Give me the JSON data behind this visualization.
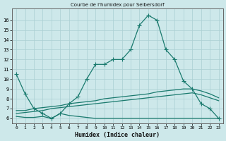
{
  "x": [
    0,
    1,
    2,
    3,
    4,
    5,
    6,
    7,
    8,
    9,
    10,
    11,
    12,
    13,
    14,
    15,
    16,
    17,
    18,
    19,
    20,
    21,
    22,
    23
  ],
  "line1": [
    10.5,
    8.5,
    7.0,
    6.5,
    6.0,
    6.5,
    7.5,
    8.2,
    10.0,
    11.5,
    11.5,
    12.0,
    12.0,
    13.0,
    15.5,
    16.5,
    16.0,
    13.0,
    12.0,
    9.8,
    9.0,
    7.5,
    7.0,
    6.0
  ],
  "line2": [
    6.8,
    6.8,
    7.0,
    7.1,
    7.2,
    7.3,
    7.5,
    7.6,
    7.7,
    7.8,
    8.0,
    8.1,
    8.2,
    8.3,
    8.4,
    8.5,
    8.7,
    8.8,
    8.9,
    9.0,
    9.0,
    8.8,
    8.5,
    8.1
  ],
  "line3": [
    6.5,
    6.6,
    6.7,
    6.8,
    7.0,
    7.1,
    7.2,
    7.3,
    7.4,
    7.5,
    7.6,
    7.7,
    7.8,
    7.9,
    8.0,
    8.1,
    8.2,
    8.3,
    8.4,
    8.5,
    8.6,
    8.4,
    8.1,
    7.8
  ],
  "line4": [
    6.2,
    6.1,
    6.1,
    6.2,
    6.0,
    6.5,
    6.3,
    6.2,
    6.1,
    6.0,
    6.0,
    6.0,
    6.0,
    6.0,
    6.0,
    6.0,
    6.0,
    6.0,
    6.0,
    6.0,
    6.0,
    6.0,
    6.0,
    6.0
  ],
  "line_color": "#1a7a6e",
  "bg_color": "#cde8ea",
  "grid_color": "#aacfd2",
  "title": "Courbe de l'humidex pour Seibersdorf",
  "xlabel": "Humidex (Indice chaleur)",
  "ylim": [
    5.5,
    17.2
  ],
  "xlim": [
    -0.5,
    23.5
  ],
  "yticks": [
    6,
    7,
    8,
    9,
    10,
    11,
    12,
    13,
    14,
    15,
    16
  ],
  "xticks": [
    0,
    1,
    2,
    3,
    4,
    5,
    6,
    7,
    8,
    9,
    10,
    11,
    12,
    13,
    14,
    15,
    16,
    17,
    18,
    19,
    20,
    21,
    22,
    23
  ]
}
